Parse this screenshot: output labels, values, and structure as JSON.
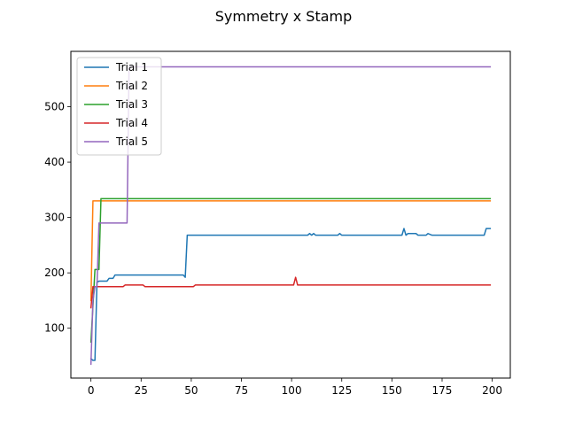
{
  "chart_data": {
    "type": "line",
    "title": "Symmetry x Stamp",
    "xlabel": "",
    "ylabel": "",
    "xlim": [
      -10,
      209
    ],
    "ylim": [
      10,
      600
    ],
    "xticks": [
      0,
      25,
      50,
      75,
      100,
      125,
      150,
      175,
      200
    ],
    "yticks": [
      100,
      200,
      300,
      400,
      500
    ],
    "grid": false,
    "legend_position": "upper-left",
    "series": [
      {
        "name": "Trial 1",
        "color": "#1f77b4",
        "points": [
          [
            0,
            45
          ],
          [
            1,
            42
          ],
          [
            2,
            42
          ],
          [
            3,
            183
          ],
          [
            4,
            185
          ],
          [
            8,
            185
          ],
          [
            9,
            190
          ],
          [
            11,
            190
          ],
          [
            12,
            196
          ],
          [
            46,
            196
          ],
          [
            47,
            192
          ],
          [
            48,
            268
          ],
          [
            108,
            268
          ],
          [
            109,
            271
          ],
          [
            110,
            268
          ],
          [
            111,
            271
          ],
          [
            112,
            268
          ],
          [
            123,
            268
          ],
          [
            124,
            271
          ],
          [
            125,
            268
          ],
          [
            155,
            268
          ],
          [
            156,
            280
          ],
          [
            157,
            268
          ],
          [
            158,
            271
          ],
          [
            162,
            271
          ],
          [
            163,
            268
          ],
          [
            167,
            268
          ],
          [
            168,
            271
          ],
          [
            170,
            268
          ],
          [
            196,
            268
          ],
          [
            197,
            280
          ],
          [
            199,
            280
          ]
        ]
      },
      {
        "name": "Trial 2",
        "color": "#ff7f0e",
        "points": [
          [
            0,
            150
          ],
          [
            1,
            330
          ],
          [
            199,
            330
          ]
        ]
      },
      {
        "name": "Trial 3",
        "color": "#2ca02c",
        "points": [
          [
            0,
            75
          ],
          [
            2,
            206
          ],
          [
            3,
            206
          ],
          [
            4,
            206
          ],
          [
            5,
            334
          ],
          [
            199,
            334
          ]
        ]
      },
      {
        "name": "Trial 4",
        "color": "#d62728",
        "points": [
          [
            0,
            137
          ],
          [
            1,
            175
          ],
          [
            16,
            175
          ],
          [
            17,
            178
          ],
          [
            26,
            178
          ],
          [
            27,
            175
          ],
          [
            51,
            175
          ],
          [
            52,
            178
          ],
          [
            101,
            178
          ],
          [
            102,
            192
          ],
          [
            103,
            178
          ],
          [
            199,
            178
          ]
        ]
      },
      {
        "name": "Trial 5",
        "color": "#9467bd",
        "points": [
          [
            0,
            35
          ],
          [
            1,
            150
          ],
          [
            2,
            175
          ],
          [
            3,
            175
          ],
          [
            4,
            290
          ],
          [
            18,
            290
          ],
          [
            19,
            572
          ],
          [
            199,
            572
          ]
        ]
      }
    ]
  }
}
